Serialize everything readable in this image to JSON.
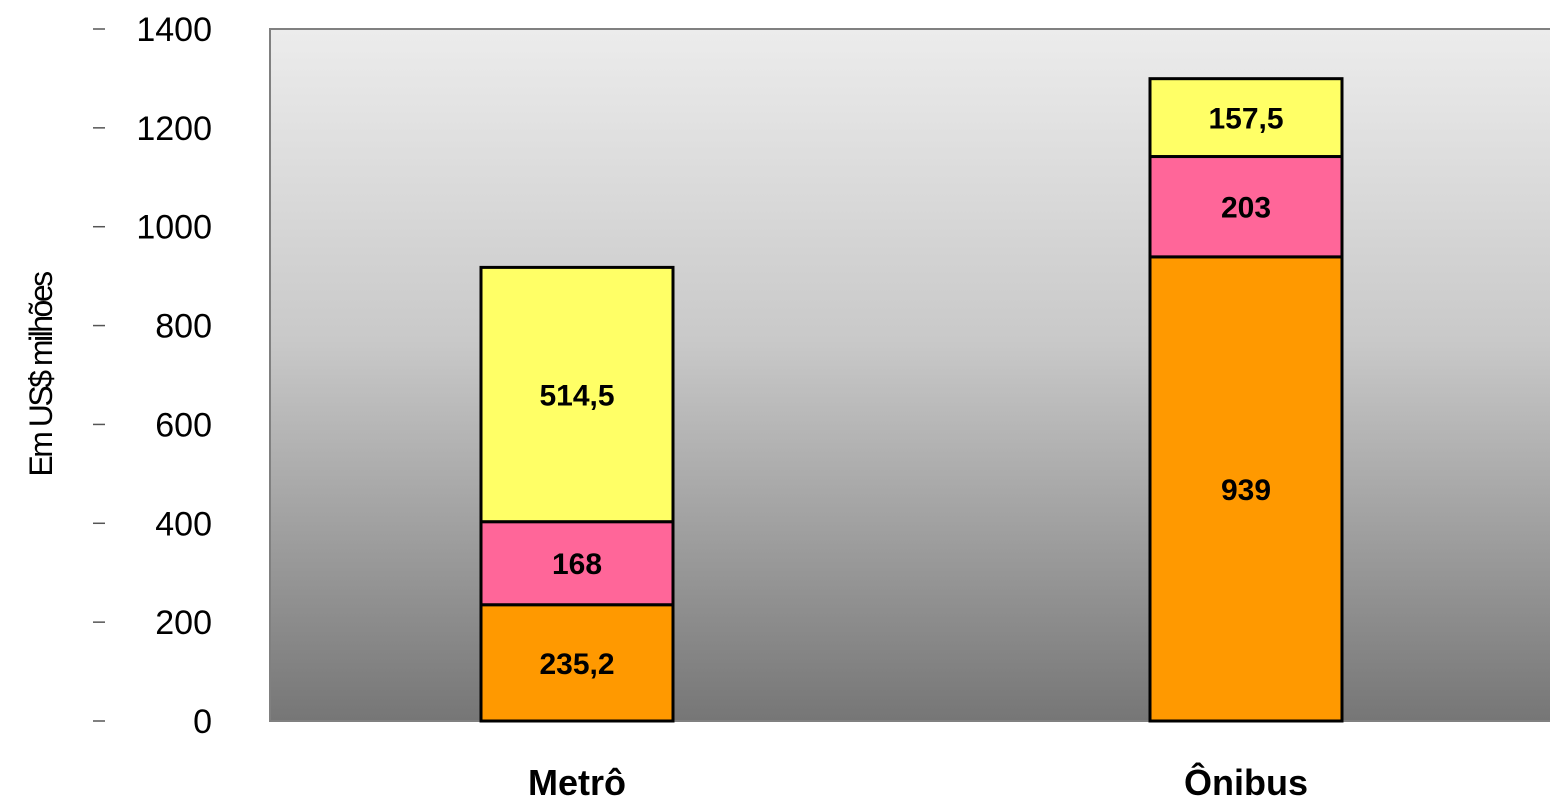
{
  "chart_data": {
    "type": "bar",
    "stacked": true,
    "title": "",
    "xlabel": "",
    "ylabel": "Em US$ milhões",
    "ylim": [
      0,
      1400
    ],
    "yticks": [
      0,
      200,
      400,
      600,
      800,
      1000,
      1200,
      1400
    ],
    "categories": [
      "Metrô",
      "Ônibus"
    ],
    "series": [
      {
        "color": "#FF9900",
        "values": [
          235.2,
          939
        ],
        "value_labels": [
          "235,2",
          "939"
        ]
      },
      {
        "color": "#FF6699",
        "values": [
          168,
          203
        ],
        "value_labels": [
          "168",
          "203"
        ]
      },
      {
        "color": "#FFFF66",
        "values": [
          514.5,
          157.5
        ],
        "value_labels": [
          "514,5",
          "157,5"
        ]
      }
    ],
    "plot_background": "gradient light gray to dark gray",
    "grid": false,
    "legend": "none"
  }
}
